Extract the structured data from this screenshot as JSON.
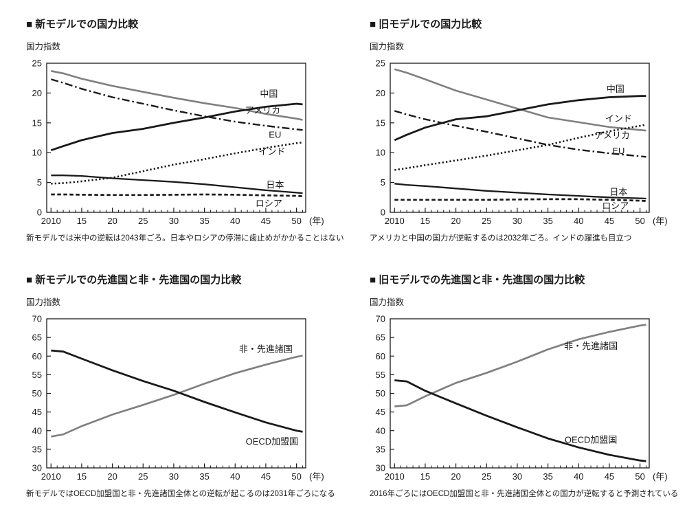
{
  "page": {
    "background": "#ffffff",
    "text_color": "#1a1a1a",
    "gray_line_color": "#808080",
    "black_line_color": "#1a1a1a"
  },
  "chart_data": [
    {
      "type": "line",
      "title": "■ 新モデルでの国力比較",
      "ylabel": "国力指数",
      "xunit": "(年)",
      "caption": "新モデルでは米中の逆転は2043年ごろ。日本やロシアの停滞に歯止めがかかることはない",
      "ylim": [
        0,
        25
      ],
      "ystep": 5,
      "xlim": [
        2009.3,
        2051.5
      ],
      "xticks": [
        2010,
        2015,
        2020,
        2025,
        2030,
        2035,
        2040,
        2045,
        2050
      ],
      "xticklabels": [
        "2010",
        "15",
        "20",
        "25",
        "30",
        "35",
        "40",
        "45",
        "50"
      ],
      "grid": false,
      "legend_position": "end-of-line-labels",
      "x": [
        2010,
        2012,
        2015,
        2020,
        2025,
        2030,
        2035,
        2040,
        2045,
        2050,
        2051
      ],
      "series": [
        {
          "name": "アメリカ",
          "color": "#808080",
          "style": "solid",
          "width": 2.6,
          "dash": "",
          "label_at": [
            2044.5,
            17.1
          ],
          "values": [
            23.7,
            23.3,
            22.4,
            21.2,
            20.2,
            19.2,
            18.3,
            17.5,
            16.5,
            15.7,
            15.5
          ]
        },
        {
          "name": "EU",
          "color": "#1a1a1a",
          "style": "dashdot",
          "width": 2.4,
          "dash": "11,4,2.5,4",
          "label_at": [
            2046.5,
            13.0
          ],
          "values": [
            22.3,
            21.7,
            20.7,
            19.3,
            18.2,
            17.1,
            16.1,
            15.2,
            14.5,
            13.9,
            13.8
          ]
        },
        {
          "name": "インド",
          "color": "#1a1a1a",
          "style": "dotted",
          "width": 2.6,
          "dash": "2.3,3.1",
          "label_at": [
            2046,
            10.2
          ],
          "values": [
            4.8,
            4.9,
            5.2,
            5.8,
            6.9,
            8.0,
            8.9,
            9.9,
            10.8,
            11.6,
            11.7
          ]
        },
        {
          "name": "ロシア",
          "color": "#1a1a1a",
          "style": "dashed",
          "width": 2.7,
          "dash": "5.5,3.5",
          "label_at": [
            2045.5,
            1.5
          ],
          "values": [
            3.0,
            3.0,
            2.95,
            2.9,
            2.9,
            2.95,
            3.0,
            2.95,
            2.85,
            2.75,
            2.7
          ]
        },
        {
          "name": "日本",
          "color": "#1a1a1a",
          "style": "solid",
          "width": 2.3,
          "dash": "",
          "label_at": [
            2046.5,
            4.6
          ],
          "values": [
            6.2,
            6.2,
            6.1,
            5.7,
            5.4,
            5.1,
            4.7,
            4.2,
            3.7,
            3.3,
            3.2
          ]
        },
        {
          "name": "中国",
          "color": "#1a1a1a",
          "style": "solid",
          "width": 2.8,
          "dash": "",
          "label_at": [
            2045.5,
            19.9
          ],
          "values": [
            10.4,
            11.1,
            12.1,
            13.3,
            14.0,
            15.0,
            15.9,
            16.9,
            17.7,
            18.2,
            18.1
          ]
        }
      ]
    },
    {
      "type": "line",
      "title": "■ 旧モデルでの国力比較",
      "ylabel": "国力指数",
      "xunit": "(年)",
      "caption": "アメリカと中国の国力が逆転するのは2032年ごろ。インドの躍進も目立つ",
      "ylim": [
        0,
        25
      ],
      "ystep": 5,
      "xlim": [
        2009.3,
        2051.5
      ],
      "xticks": [
        2010,
        2015,
        2020,
        2025,
        2030,
        2035,
        2040,
        2045,
        2050
      ],
      "xticklabels": [
        "2010",
        "15",
        "20",
        "25",
        "30",
        "35",
        "40",
        "45",
        "50"
      ],
      "grid": false,
      "legend_position": "end-of-line-labels",
      "x": [
        2010,
        2012,
        2015,
        2020,
        2025,
        2030,
        2035,
        2040,
        2045,
        2050,
        2051
      ],
      "series": [
        {
          "name": "アメリカ",
          "color": "#808080",
          "style": "solid",
          "width": 2.6,
          "dash": "",
          "label_at": [
            2045.5,
            12.9
          ],
          "values": [
            24.0,
            23.4,
            22.3,
            20.4,
            18.9,
            17.4,
            15.9,
            15.1,
            14.3,
            13.8,
            13.7
          ]
        },
        {
          "name": "EU",
          "color": "#1a1a1a",
          "style": "dashdot",
          "width": 2.4,
          "dash": "11,4,2.5,4",
          "label_at": [
            2046.5,
            10.3
          ],
          "values": [
            17.0,
            16.4,
            15.6,
            14.5,
            13.5,
            12.4,
            11.3,
            10.5,
            9.9,
            9.4,
            9.3
          ]
        },
        {
          "name": "インド",
          "color": "#1a1a1a",
          "style": "dotted",
          "width": 2.6,
          "dash": "2.3,3.1",
          "label_at": [
            2046.5,
            15.7
          ],
          "values": [
            7.1,
            7.4,
            7.9,
            8.7,
            9.5,
            10.4,
            11.3,
            12.5,
            13.6,
            14.5,
            14.7
          ]
        },
        {
          "name": "ロシア",
          "color": "#1a1a1a",
          "style": "dashed",
          "width": 2.7,
          "dash": "5.5,3.5",
          "label_at": [
            2046,
            1.1
          ],
          "values": [
            2.1,
            2.1,
            2.1,
            2.1,
            2.1,
            2.15,
            2.2,
            2.2,
            2.1,
            1.95,
            1.9
          ]
        },
        {
          "name": "日本",
          "color": "#1a1a1a",
          "style": "solid",
          "width": 2.3,
          "dash": "",
          "label_at": [
            2046.5,
            3.4
          ],
          "values": [
            4.8,
            4.6,
            4.4,
            4.0,
            3.6,
            3.3,
            3.0,
            2.75,
            2.5,
            2.35,
            2.3
          ]
        },
        {
          "name": "中国",
          "color": "#1a1a1a",
          "style": "solid",
          "width": 2.8,
          "dash": "",
          "label_at": [
            2046,
            20.7
          ],
          "values": [
            12.1,
            13.0,
            14.2,
            15.6,
            16.1,
            17.1,
            18.1,
            18.8,
            19.3,
            19.5,
            19.5
          ]
        }
      ]
    },
    {
      "type": "line",
      "title": "■ 新モデルでの先進国と非・先進国の国力比較",
      "ylabel": "国力指数",
      "xunit": "(年)",
      "caption": "新モデルではOECD加盟国と非・先進諸国全体との逆転が起こるのは2031年ごろになる",
      "ylim": [
        30,
        70
      ],
      "ystep": 5,
      "xlim": [
        2009.3,
        2051.5
      ],
      "xticks": [
        2010,
        2015,
        2020,
        2025,
        2030,
        2035,
        2040,
        2045,
        2050
      ],
      "xticklabels": [
        "2010",
        "15",
        "20",
        "25",
        "30",
        "35",
        "40",
        "45",
        "50"
      ],
      "grid": false,
      "legend_position": "end-of-line-labels",
      "x": [
        2010,
        2012,
        2015,
        2020,
        2025,
        2030,
        2035,
        2040,
        2045,
        2050,
        2051
      ],
      "series": [
        {
          "name": "非・先進諸国",
          "color": "#808080",
          "style": "solid",
          "width": 2.7,
          "dash": "",
          "label_at": [
            2045,
            61.9
          ],
          "values": [
            38.4,
            39.0,
            41.2,
            44.3,
            46.9,
            49.6,
            52.6,
            55.4,
            57.7,
            59.8,
            60.1
          ]
        },
        {
          "name": "OECD加盟国",
          "color": "#1a1a1a",
          "style": "solid",
          "width": 2.8,
          "dash": "",
          "label_at": [
            2046,
            37.1
          ],
          "values": [
            61.5,
            61.2,
            59.3,
            56.2,
            53.3,
            50.7,
            47.7,
            44.9,
            42.2,
            40.0,
            39.7
          ]
        }
      ]
    },
    {
      "type": "line",
      "title": "■ 旧モデルでの先進国と非・先進国の国力比較",
      "ylabel": "国力指数",
      "xunit": "(年)",
      "caption": "2016年ごろにはOECD加盟国と非・先進諸国全体との国力が逆転すると予測されている",
      "ylim": [
        30,
        70
      ],
      "ystep": 5,
      "xlim": [
        2009.3,
        2051.5
      ],
      "xticks": [
        2010,
        2015,
        2020,
        2025,
        2030,
        2035,
        2040,
        2045,
        2050
      ],
      "xticklabels": [
        "2010",
        "15",
        "20",
        "25",
        "30",
        "35",
        "40",
        "45",
        "50"
      ],
      "grid": false,
      "legend_position": "end-of-line-labels",
      "x": [
        2010,
        2012,
        2015,
        2020,
        2025,
        2030,
        2035,
        2040,
        2045,
        2050,
        2051
      ],
      "series": [
        {
          "name": "非・先進諸国",
          "color": "#808080",
          "style": "solid",
          "width": 2.7,
          "dash": "",
          "label_at": [
            2042,
            62.7
          ],
          "values": [
            46.5,
            46.8,
            49.2,
            52.8,
            55.5,
            58.5,
            61.8,
            64.5,
            66.5,
            68.2,
            68.4
          ]
        },
        {
          "name": "OECD加盟国",
          "color": "#1a1a1a",
          "style": "solid",
          "width": 2.8,
          "dash": "",
          "label_at": [
            2042,
            37.6
          ],
          "values": [
            53.5,
            53.2,
            50.7,
            47.3,
            44.0,
            40.9,
            37.9,
            35.5,
            33.5,
            32.0,
            31.8
          ]
        }
      ]
    }
  ]
}
